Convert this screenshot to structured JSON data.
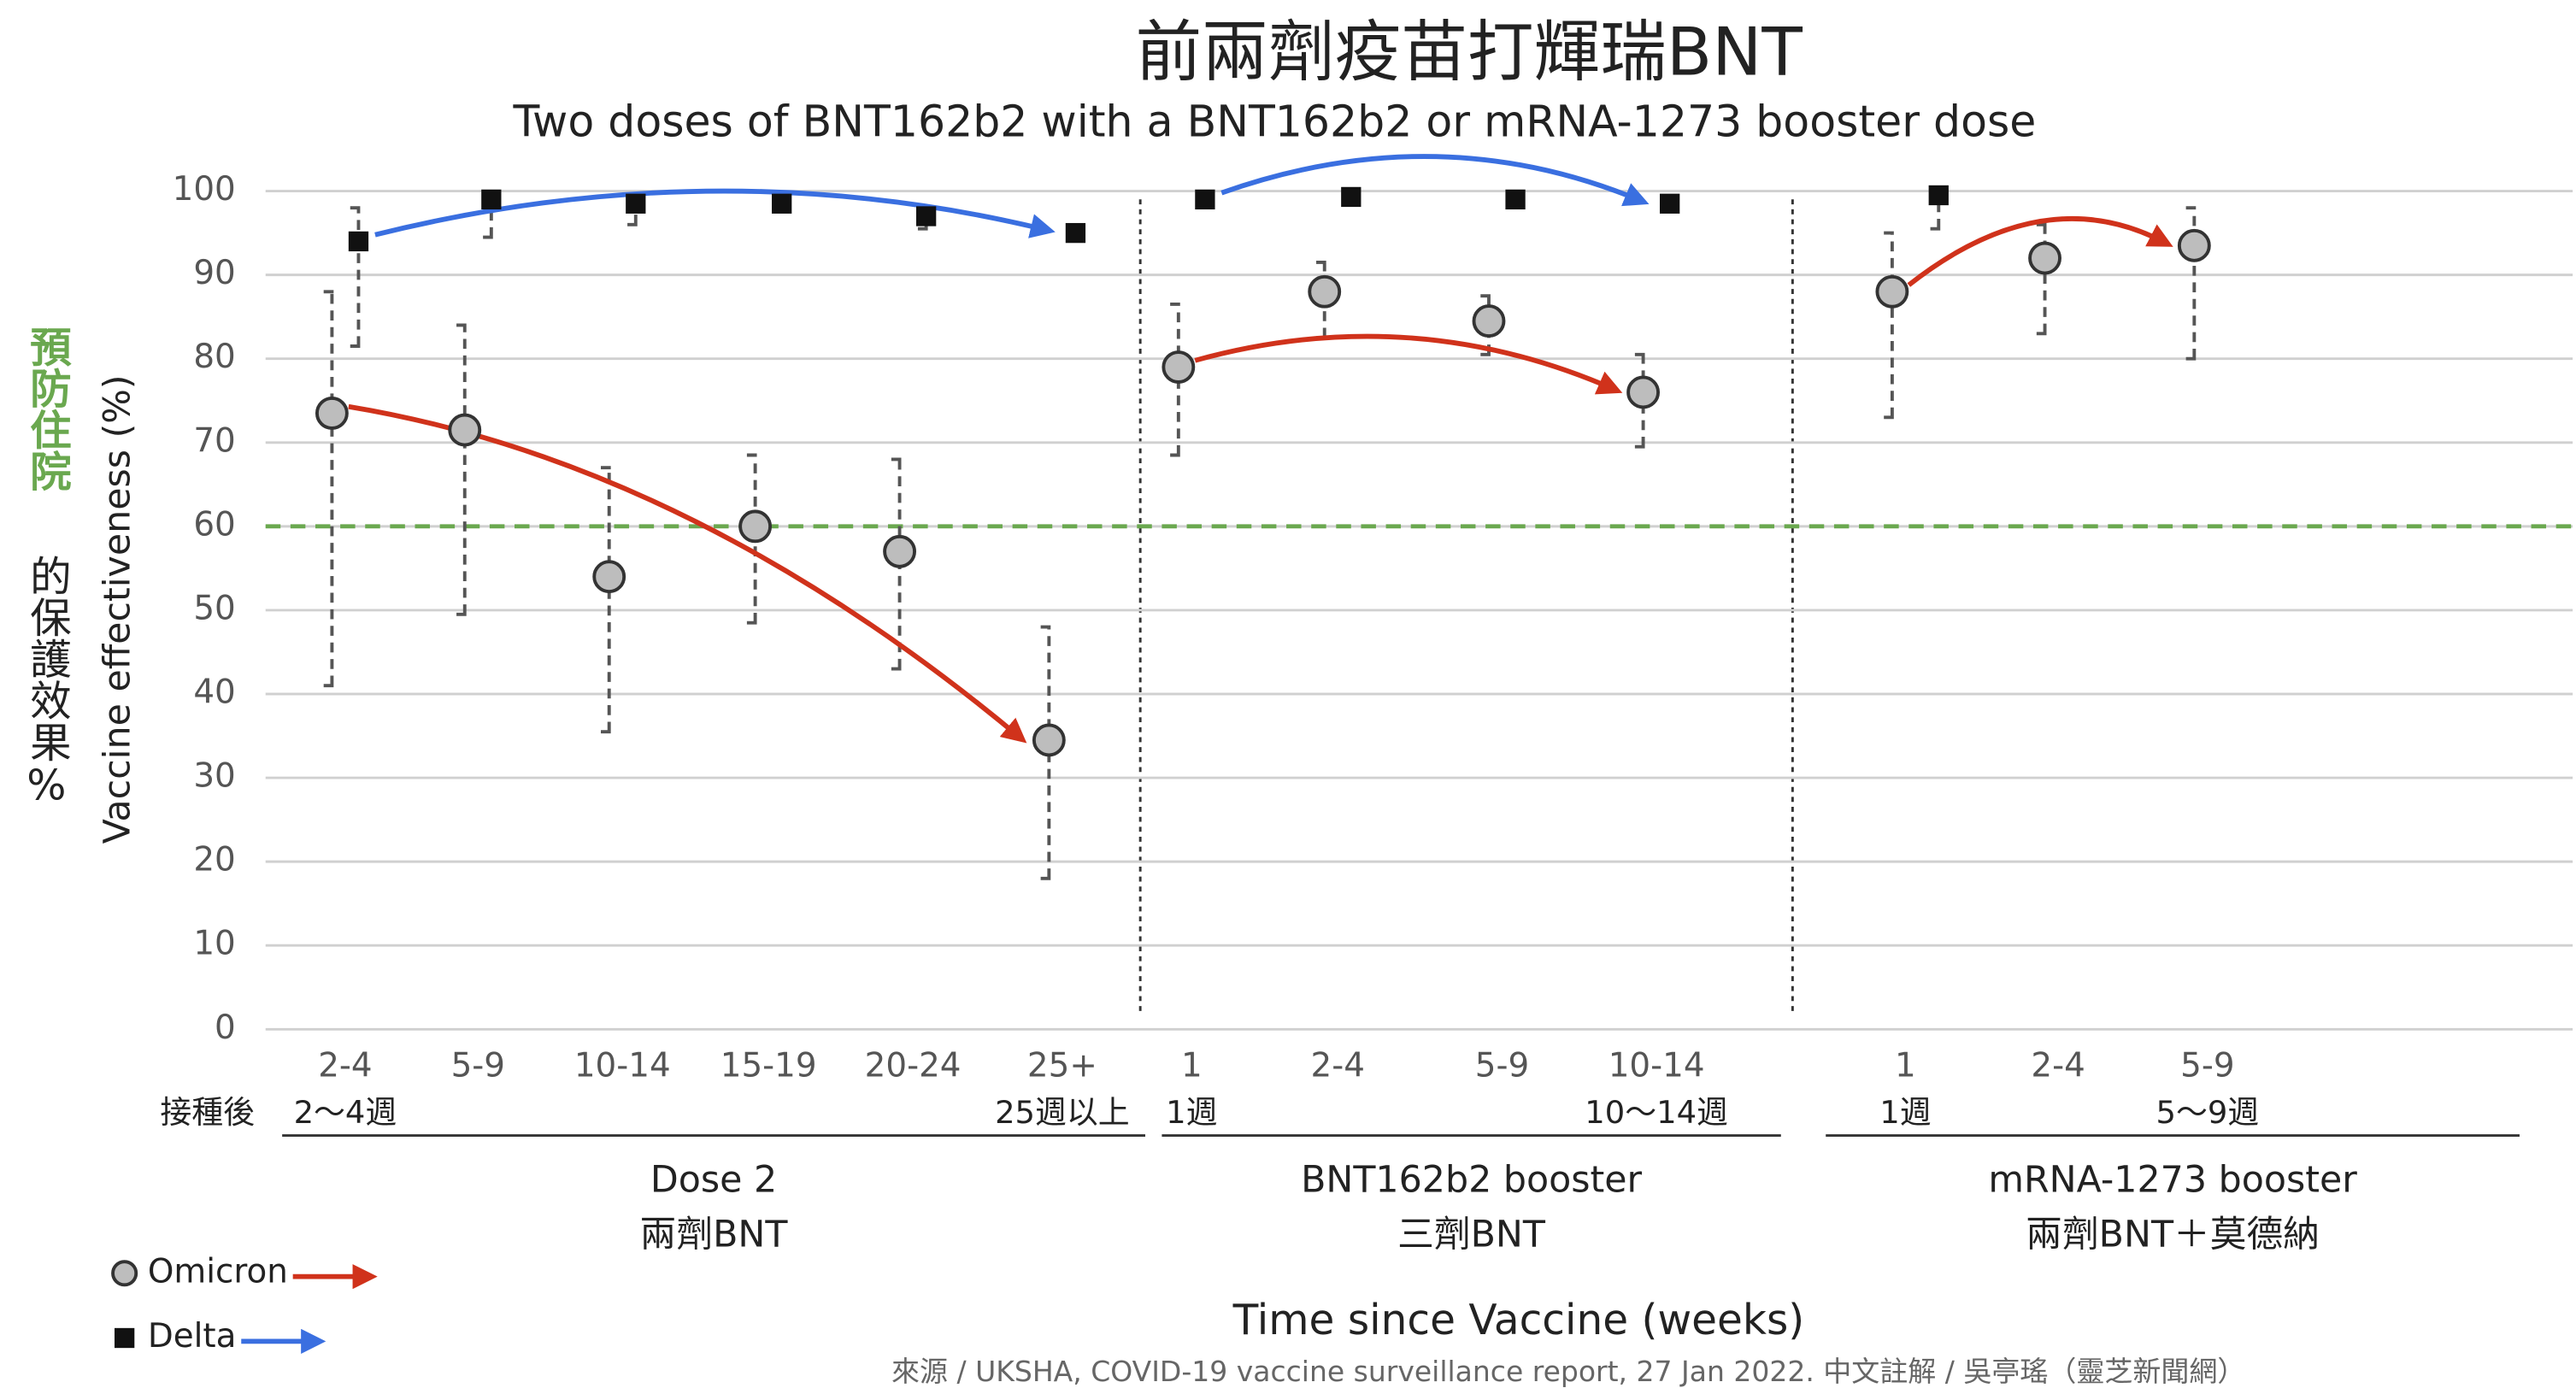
{
  "chart_data": {
    "type": "errorbar",
    "title": "前兩劑疫苗打輝瑞BNT",
    "subtitle": "Two doses of BNT162b2 with a BNT162b2 or mRNA-1273 booster dose",
    "y_label": "Vaccine effectiveness (%)",
    "x_label": "Time since Vaccine (weeks)",
    "side_label_highlight": "預防住院",
    "side_label_rest": "的保護效果%",
    "x_prefix": "接種後",
    "source": "來源 / UKSHA, COVID-19 vaccine surveillance report, 27 Jan 2022.  中文註解 / 吳亭瑤（靈芝新聞網）",
    "ylim": [
      0,
      100
    ],
    "yticks": [
      0,
      10,
      20,
      30,
      40,
      50,
      60,
      70,
      80,
      90,
      100
    ],
    "grid": true,
    "reference_line": {
      "value": 60,
      "color": "#6aa84f"
    },
    "legend": [
      {
        "name": "Omicron",
        "color": "#d0321b",
        "marker": "circle"
      },
      {
        "name": "Delta",
        "color": "#3a6fe0",
        "marker": "square"
      }
    ],
    "groups": [
      {
        "name": "Dose 2",
        "name_zh": "兩劑BNT",
        "start_label": "2～4週",
        "end_label": "25週以上",
        "categories": [
          "2-4",
          "5-9",
          "10-14",
          "15-19",
          "20-24",
          "25+"
        ],
        "series": [
          {
            "name": "Omicron",
            "values": [
              73.5,
              71.5,
              54,
              60,
              57,
              34.5
            ],
            "ci_low": [
              41,
              49.5,
              35.5,
              48.5,
              43,
              18
            ],
            "ci_high": [
              88,
              84,
              67,
              68.5,
              68,
              48
            ]
          },
          {
            "name": "Delta",
            "values": [
              94,
              99,
              98.5,
              98.5,
              97,
              95
            ],
            "ci_low": [
              81.5,
              94.5,
              96,
              98,
              95.5,
              95
            ],
            "ci_high": [
              98,
              99.5,
              99,
              99,
              97.5,
              95.5
            ]
          }
        ]
      },
      {
        "name": "BNT162b2 booster",
        "name_zh": "三劑BNT",
        "start_label": "1週",
        "end_label": "10～14週",
        "categories": [
          "1",
          "2-4",
          "5-9",
          "10-14"
        ],
        "series": [
          {
            "name": "Omicron",
            "values": [
              79,
              88,
              84.5,
              76
            ],
            "ci_low": [
              68.5,
              82.5,
              80.5,
              69.5
            ],
            "ci_high": [
              86.5,
              91.5,
              87.5,
              80.5
            ]
          },
          {
            "name": "Delta",
            "values": [
              99,
              99.3,
              99,
              98.5
            ],
            "ci_low": [
              null,
              null,
              null,
              null
            ],
            "ci_high": [
              null,
              null,
              null,
              null
            ]
          }
        ]
      },
      {
        "name": "mRNA-1273 booster",
        "name_zh": "兩劑BNT＋莫德納",
        "start_label": "1週",
        "end_label": "5～9週",
        "categories": [
          "1",
          "2-4",
          "5-9"
        ],
        "series": [
          {
            "name": "Omicron",
            "values": [
              88,
              92,
              93.5
            ],
            "ci_low": [
              73,
              83,
              80
            ],
            "ci_high": [
              95,
              96,
              98
            ]
          },
          {
            "name": "Delta",
            "values": [
              99.5,
              null,
              null
            ],
            "ci_low": [
              95.5,
              null,
              null
            ],
            "ci_high": [
              100,
              null,
              null
            ]
          }
        ]
      }
    ]
  }
}
